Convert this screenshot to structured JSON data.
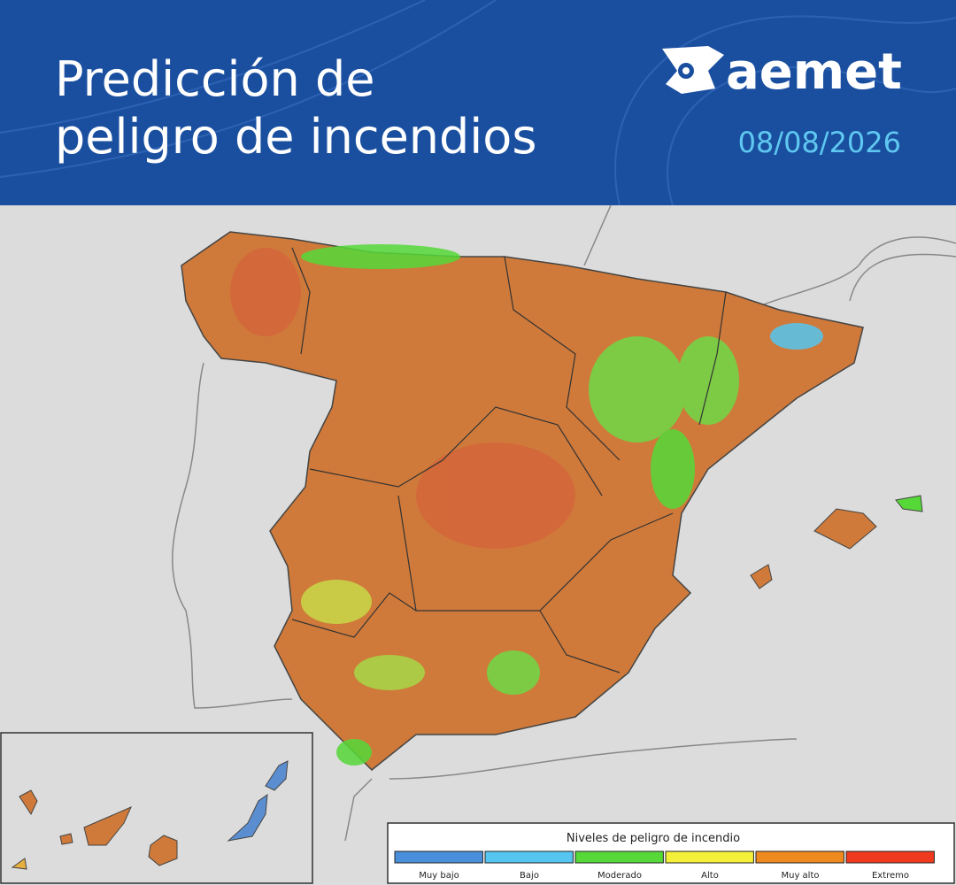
{
  "header": {
    "title_lines": [
      "Predicción de",
      "peligro de incendios"
    ],
    "brand": "aemet",
    "date": "08/08/2026"
  },
  "legend": {
    "title": "Niveles de peligro de incendio",
    "items": [
      {
        "label": "Muy bajo",
        "color": "#4a8fdc"
      },
      {
        "label": "Bajo",
        "color": "#55c6f0"
      },
      {
        "label": "Moderado",
        "color": "#55d838"
      },
      {
        "label": "Alto",
        "color": "#f4f03a"
      },
      {
        "label": "Muy alto",
        "color": "#ef8a1e"
      },
      {
        "label": "Extremo",
        "color": "#ef3a1e"
      }
    ]
  }
}
